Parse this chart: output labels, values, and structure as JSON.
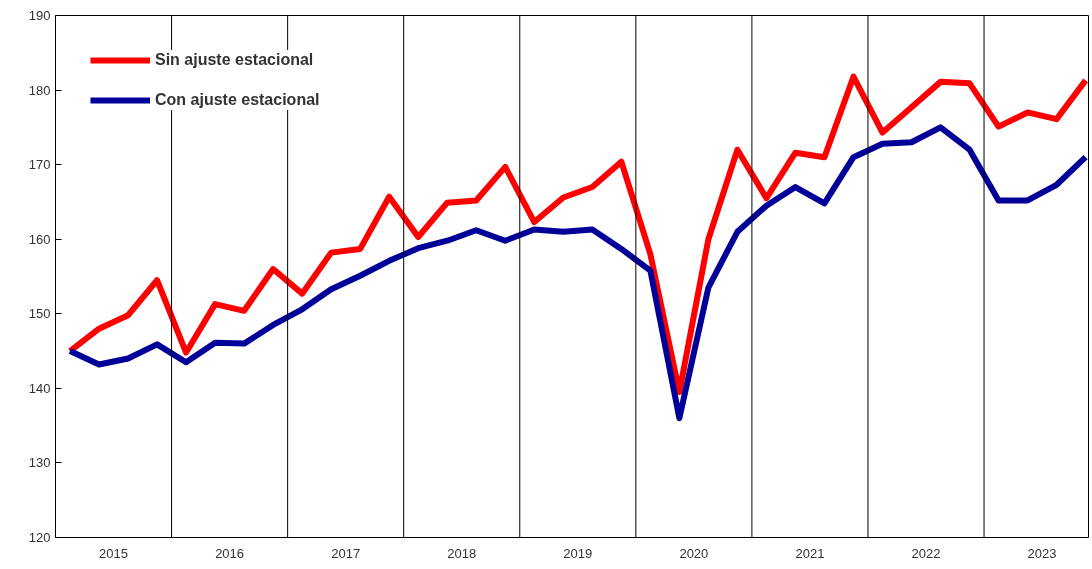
{
  "chart_data": {
    "type": "line",
    "x": [
      2015.125,
      2015.375,
      2015.625,
      2015.875,
      2016.125,
      2016.375,
      2016.625,
      2016.875,
      2017.125,
      2017.375,
      2017.625,
      2017.875,
      2018.125,
      2018.375,
      2018.625,
      2018.875,
      2019.125,
      2019.375,
      2019.625,
      2019.875,
      2020.125,
      2020.375,
      2020.625,
      2020.875,
      2021.125,
      2021.375,
      2021.625,
      2021.875,
      2022.125,
      2022.375,
      2022.625,
      2022.875,
      2023.125,
      2023.375,
      2023.625,
      2023.875
    ],
    "series": [
      {
        "name": "Sin ajuste estacional",
        "color": "#ff0000",
        "values": [
          145,
          148,
          149.8,
          154.5,
          144.8,
          151.3,
          150.4,
          156,
          152.7,
          158.2,
          158.7,
          165.7,
          160.3,
          164.9,
          165.2,
          169.7,
          162.3,
          165.6,
          167,
          170.4,
          158,
          139.5,
          160,
          172,
          165.5,
          171.6,
          171,
          181.8,
          174.3,
          177.7,
          181.1,
          180.9,
          175.1,
          177,
          176.1,
          181.3
        ]
      },
      {
        "name": "Con ajuste estacional",
        "color": "#000099",
        "values": [
          145,
          143.2,
          144,
          145.9,
          143.5,
          146.1,
          146,
          148.5,
          150.6,
          153.3,
          155.1,
          157.1,
          158.8,
          159.8,
          161.2,
          159.8,
          161.3,
          161,
          161.3,
          158.7,
          155.8,
          136,
          153.5,
          161,
          164.5,
          167,
          164.8,
          171,
          172.8,
          173,
          175,
          172,
          165.2,
          165.2,
          167.3,
          171
        ]
      }
    ],
    "xlim": [
      2015,
      2023.9
    ],
    "xticks": [
      {
        "value": 2015.5,
        "label": "2015"
      },
      {
        "value": 2016.5,
        "label": "2016"
      },
      {
        "value": 2017.5,
        "label": "2017"
      },
      {
        "value": 2018.5,
        "label": "2018"
      },
      {
        "value": 2019.5,
        "label": "2019"
      },
      {
        "value": 2020.5,
        "label": "2020"
      },
      {
        "value": 2021.5,
        "label": "2021"
      },
      {
        "value": 2022.5,
        "label": "2022"
      },
      {
        "value": 2023.5,
        "label": "2023"
      }
    ],
    "ylim": [
      120,
      190
    ],
    "yticks": [
      120,
      130,
      140,
      150,
      160,
      170,
      180,
      190
    ],
    "ref_lines": [
      {
        "axis": "x",
        "value": 2016,
        "color": "#000000"
      },
      {
        "axis": "x",
        "value": 2017,
        "color": "#000000"
      },
      {
        "axis": "x",
        "value": 2018,
        "color": "#000000"
      },
      {
        "axis": "x",
        "value": 2019,
        "color": "#000000"
      },
      {
        "axis": "x",
        "value": 2020,
        "color": "#000000"
      },
      {
        "axis": "x",
        "value": 2021,
        "color": "#000000"
      },
      {
        "axis": "x",
        "value": 2022,
        "color": "#000000"
      },
      {
        "axis": "x",
        "value": 2023,
        "color": "#000000"
      }
    ],
    "grid": false,
    "legend": "top left",
    "marker": "none",
    "line_style": "solid"
  }
}
